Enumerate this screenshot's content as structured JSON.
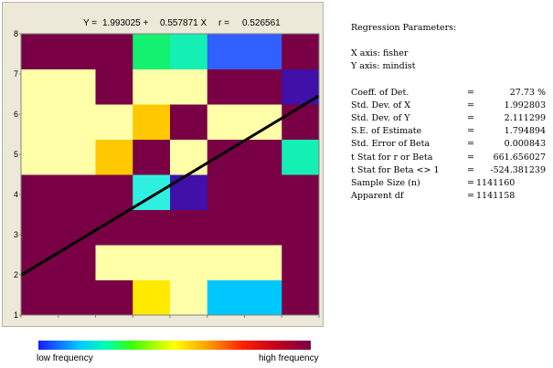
{
  "chart_data": {
    "type": "heatmap",
    "equation": {
      "y_label": "Y =",
      "intercept": "1.993025 +",
      "slope_text": "0.557871 X",
      "r_label": "r =",
      "r_value": "0.526561"
    },
    "xlim": [
      0,
      8
    ],
    "ylim": [
      1,
      8
    ],
    "y_ticks": [
      "1",
      "2",
      "3",
      "4",
      "5",
      "6",
      "7",
      "8"
    ],
    "cell_colors": [
      [
        "#7a0046",
        "#7a0046",
        "#7a0046",
        "#ffea00",
        "#ffffa8",
        "#00c8ff",
        "#00c8ff",
        "#7a0046"
      ],
      [
        "#7a0046",
        "#7a0046",
        "#ffffa8",
        "#ffffa8",
        "#ffffa8",
        "#ffffa8",
        "#ffffa8",
        "#7a0046"
      ],
      [
        "#7a0046",
        "#7a0046",
        "#7a0046",
        "#7a0046",
        "#7a0046",
        "#7a0046",
        "#7a0046",
        "#7a0046"
      ],
      [
        "#7a0046",
        "#7a0046",
        "#7a0046",
        "#2ff0e0",
        "#4010a8",
        "#7a0046",
        "#7a0046",
        "#7a0046"
      ],
      [
        "#ffffa8",
        "#ffffa8",
        "#ffc800",
        "#7a0046",
        "#ffffa8",
        "#7a0046",
        "#7a0046",
        "#14f0b4"
      ],
      [
        "#ffffa8",
        "#ffffa8",
        "#ffffa8",
        "#ffc800",
        "#7a0046",
        "#ffffa8",
        "#ffffa8",
        "#7a0046"
      ],
      [
        "#ffffa8",
        "#ffffa8",
        "#7a0046",
        "#ffffa8",
        "#ffffa8",
        "#7a0046",
        "#7a0046",
        "#4010a8"
      ],
      [
        "#7a0046",
        "#7a0046",
        "#7a0046",
        "#14f070",
        "#14f0b4",
        "#3060ff",
        "#3060ff",
        "#7a0046"
      ]
    ],
    "regression_line": {
      "intercept": 1.993025,
      "slope": 0.557871
    },
    "legend": {
      "low": "low frequency",
      "high": "high frequency"
    }
  },
  "params": {
    "title": "Regression Parameters:",
    "x_axis": "X axis: fisher",
    "y_axis": "Y axis: mindist",
    "rows": [
      {
        "label": "Coeff. of Det.",
        "eq": "=",
        "value": "27.73 %"
      },
      {
        "label": "Std. Dev. of X",
        "eq": "=",
        "value": "1.992803"
      },
      {
        "label": "Std. Dev. of Y",
        "eq": "=",
        "value": "2.111299"
      },
      {
        "label": "S.E. of Estimate",
        "eq": "=",
        "value": "1.794894"
      },
      {
        "label": "Std. Error of Beta",
        "eq": "=",
        "value": "0.000843"
      },
      {
        "label": "t Stat for r or Beta",
        "eq": "=",
        "value": "661.656027"
      },
      {
        "label": "t Stat for Beta <> 1",
        "eq": "=",
        "value": "-524.381239"
      },
      {
        "label": "Sample Size (n)",
        "eq": "=",
        "value": "1141160"
      },
      {
        "label": "Apparent df",
        "eq": "=",
        "value": "1141158"
      }
    ]
  }
}
